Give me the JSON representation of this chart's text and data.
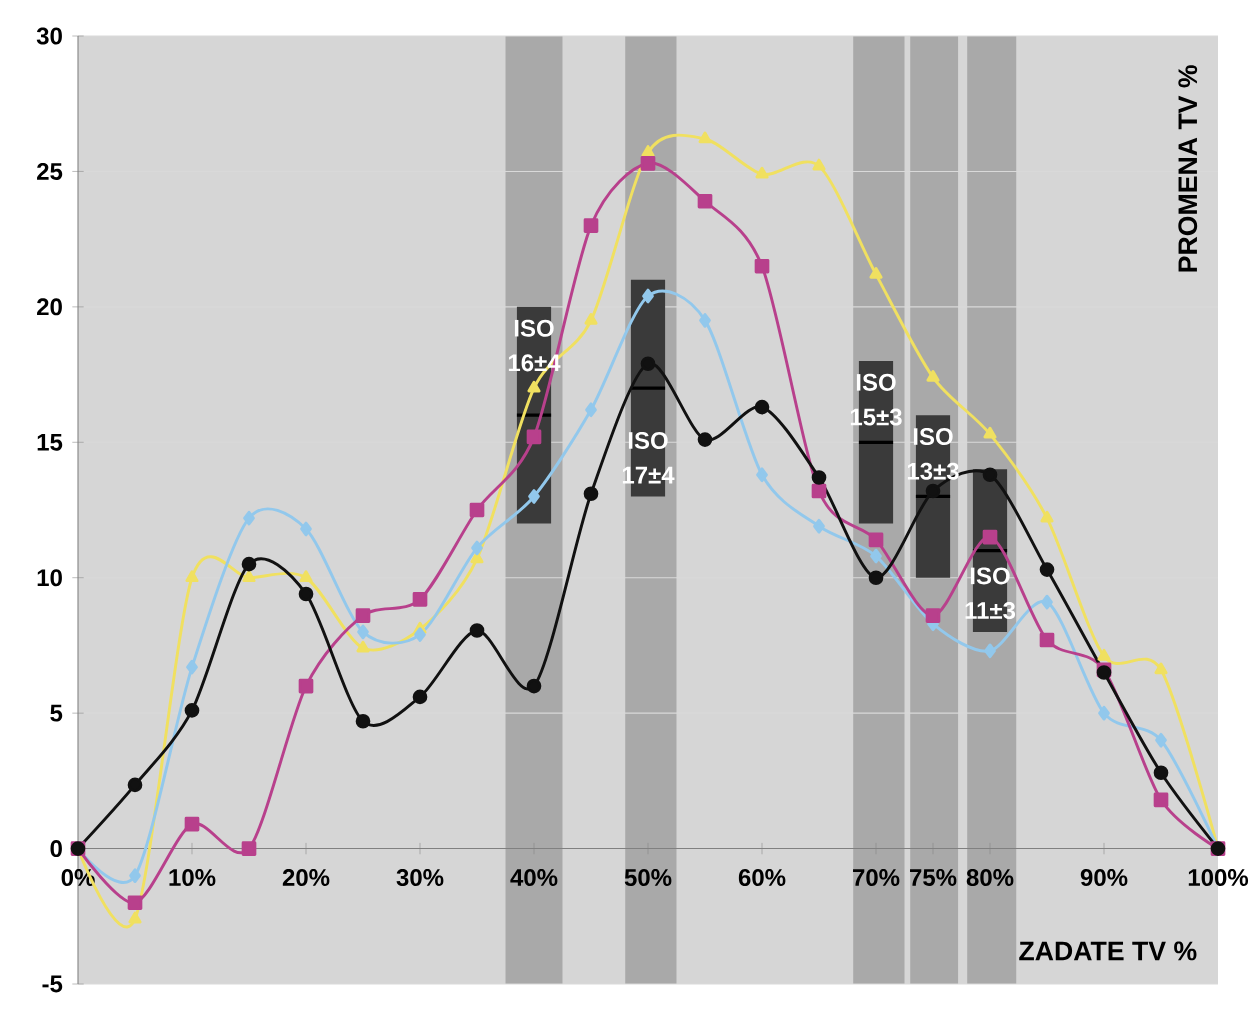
{
  "chart_data": {
    "type": "line",
    "xlabel": "ZADATE TV %",
    "ylabel": "PROMENA TV %",
    "x": [
      0,
      5,
      10,
      15,
      20,
      25,
      30,
      35,
      40,
      45,
      50,
      55,
      60,
      65,
      70,
      75,
      80,
      85,
      90,
      95,
      100
    ],
    "xlim": [
      0,
      100
    ],
    "xticks": [
      {
        "value": 0,
        "label": "0%"
      },
      {
        "value": 10,
        "label": "10%"
      },
      {
        "value": 20,
        "label": "20%"
      },
      {
        "value": 30,
        "label": "30%"
      },
      {
        "value": 40,
        "label": "40%"
      },
      {
        "value": 50,
        "label": "50%"
      },
      {
        "value": 60,
        "label": "60%"
      },
      {
        "value": 70,
        "label": "70%"
      },
      {
        "value": 75,
        "label": "75%"
      },
      {
        "value": 80,
        "label": "80%"
      },
      {
        "value": 90,
        "label": "90%"
      },
      {
        "value": 100,
        "label": "100%"
      }
    ],
    "ylim": [
      -5,
      30
    ],
    "yticks": [
      -5,
      0,
      5,
      10,
      15,
      20,
      25,
      30
    ],
    "grid": "y",
    "bands": [
      {
        "axis": "x",
        "from": 37.5,
        "to": 42.5,
        "color": "#a9a9a9"
      },
      {
        "axis": "x",
        "from": 48,
        "to": 52.5,
        "color": "#a9a9a9"
      },
      {
        "axis": "x",
        "from": 68,
        "to": 72.5,
        "color": "#a9a9a9"
      },
      {
        "axis": "x",
        "from": 73,
        "to": 77.2,
        "color": "#a9a9a9"
      },
      {
        "axis": "x",
        "from": 78,
        "to": 82.3,
        "color": "#a9a9a9"
      }
    ],
    "series": [
      {
        "type": "box",
        "x": [
          40,
          50,
          70,
          75,
          80
        ],
        "color": "#3a3a3a",
        "boxes": [
          {
            "low": 12,
            "q1": 12,
            "median": 16,
            "q3": 20,
            "high": 20
          },
          {
            "low": 13,
            "q1": 13,
            "median": 17,
            "q3": 21,
            "high": 21
          },
          {
            "low": 12,
            "q1": 12,
            "median": 15,
            "q3": 18,
            "high": 18
          },
          {
            "low": 10,
            "q1": 10,
            "median": 13,
            "q3": 16,
            "high": 16
          },
          {
            "low": 8,
            "q1": 8,
            "median": 11,
            "q3": 14,
            "high": 14
          }
        ]
      },
      {
        "color": "#f0e060",
        "marker": "triangle",
        "values": [
          0,
          -2.6,
          10.0,
          10.0,
          10.0,
          7.4,
          8.1,
          10.7,
          17.0,
          19.5,
          25.7,
          26.2,
          24.9,
          25.2,
          21.2,
          17.4,
          15.3,
          12.2,
          7.1,
          6.6,
          0
        ]
      },
      {
        "color": "#92c8ec",
        "marker": "diamond",
        "values": [
          0,
          -1.0,
          6.7,
          12.2,
          11.8,
          8.0,
          7.9,
          11.1,
          13.0,
          16.2,
          20.4,
          19.5,
          13.8,
          11.9,
          10.8,
          8.3,
          7.3,
          9.1,
          5.0,
          4.0,
          0
        ]
      },
      {
        "color": "#b8408c",
        "marker": "square",
        "values": [
          0,
          -2.0,
          0.9,
          0,
          6.0,
          8.6,
          9.2,
          12.5,
          15.2,
          23.0,
          25.3,
          23.9,
          21.5,
          13.2,
          11.4,
          8.6,
          11.5,
          7.7,
          6.6,
          1.8,
          0
        ]
      },
      {
        "color": "#111111",
        "marker": "circle",
        "values": [
          0,
          2.35,
          5.1,
          10.5,
          9.4,
          4.7,
          5.6,
          8.05,
          6.0,
          13.1,
          17.9,
          15.1,
          16.3,
          13.7,
          10.0,
          13.2,
          13.8,
          10.3,
          6.5,
          2.8,
          0
        ]
      }
    ],
    "annotations": [
      "ISO",
      "16±4",
      "ISO",
      "17±4",
      "ISO",
      "15±3",
      "ISO",
      "13±3",
      "ISO",
      "11±3"
    ]
  }
}
